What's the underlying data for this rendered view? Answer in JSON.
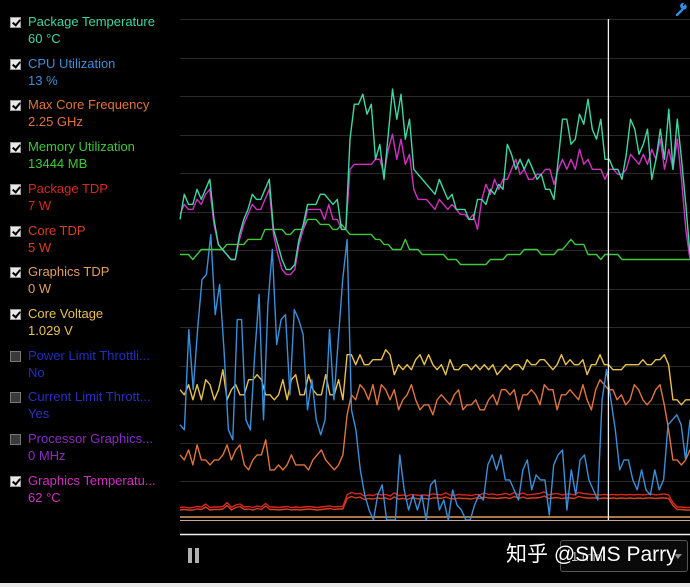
{
  "legend": {
    "items": [
      {
        "label": "Package Temperature",
        "value": "60 °C",
        "checked": true,
        "color": "#3fd6a6"
      },
      {
        "label": "CPU Utilization",
        "value": "13 %",
        "checked": true,
        "color": "#3a8fd8"
      },
      {
        "label": "Max Core Frequency",
        "value": "2.25 GHz",
        "checked": true,
        "color": "#e0743c"
      },
      {
        "label": "Memory Utilization",
        "value": "13444  MB",
        "checked": true,
        "color": "#3ec83a"
      },
      {
        "label": "Package TDP",
        "value": "7 W",
        "checked": true,
        "color": "#d8281e"
      },
      {
        "label": "Core TDP",
        "value": "5 W",
        "checked": true,
        "color": "#d8401e"
      },
      {
        "label": "Graphics TDP",
        "value": "0 W",
        "checked": true,
        "color": "#e0a060"
      },
      {
        "label": "Core Voltage",
        "value": "1.029 V",
        "checked": true,
        "color": "#e8c050"
      },
      {
        "label": "Power Limit Throttli...",
        "value": "No",
        "checked": false,
        "color": "#1f2fbf"
      },
      {
        "label": "Current Limit Thrott...",
        "value": "Yes",
        "checked": false,
        "color": "#2a2fbf"
      },
      {
        "label": "Processor Graphics...",
        "value": "0 MHz",
        "checked": false,
        "color": "#8a2ac8"
      },
      {
        "label": "Graphics Temperatu...",
        "value": "62 °C",
        "checked": true,
        "color": "#d030c0"
      }
    ]
  },
  "toolbar": {
    "settings_icon": "wrench-icon",
    "pause_icon": "pause-icon",
    "time_range": "1 min"
  },
  "watermark": "知乎 @SMS Parry",
  "chart_data": {
    "type": "line",
    "title": "",
    "xlabel": "",
    "ylabel": "",
    "ylim": [
      0,
      100
    ],
    "grid": true,
    "cursor_x_fraction": 0.84,
    "series": [
      {
        "name": "Package Temperature",
        "color": "#3fd6a6",
        "values": [
          60,
          65,
          63,
          63,
          66,
          64,
          66,
          68,
          60,
          55,
          54,
          53,
          52,
          52,
          57,
          60,
          62,
          65,
          64,
          64,
          66,
          68,
          58,
          55,
          52,
          50,
          50,
          51,
          56,
          59,
          63,
          63,
          63,
          65,
          65,
          64,
          63,
          64,
          58,
          58,
          76,
          83,
          83,
          85,
          81,
          83,
          72,
          75,
          68,
          77,
          86,
          80,
          85,
          76,
          80,
          70,
          69,
          68,
          67,
          66,
          65,
          68,
          66,
          64,
          65,
          62,
          62,
          62,
          60,
          60,
          64,
          64,
          63,
          66,
          65,
          67,
          66,
          75,
          73,
          70,
          72,
          70,
          72,
          70,
          68,
          69,
          66,
          66,
          64,
          72,
          80,
          80,
          75,
          76,
          81,
          79,
          84,
          78,
          76,
          80,
          72,
          72,
          70,
          70,
          68,
          73,
          80,
          78,
          73,
          75,
          78,
          68,
          72,
          78,
          72,
          82,
          70,
          80,
          72,
          63,
          53
        ]
      },
      {
        "name": "Graphics Temperature",
        "color": "#d030c0",
        "values": [
          61,
          63,
          62,
          62,
          64,
          63,
          65,
          66,
          59,
          55,
          54,
          53,
          52,
          52,
          56,
          59,
          61,
          63,
          62,
          62,
          64,
          66,
          57,
          53,
          50,
          49,
          49,
          50,
          55,
          58,
          62,
          62,
          62,
          62,
          60,
          63,
          60,
          60,
          58,
          58,
          70,
          71,
          71,
          71,
          71,
          71,
          72,
          72,
          69,
          74,
          77,
          72,
          76,
          71,
          73,
          66,
          64,
          64,
          64,
          63,
          62,
          64,
          63,
          62,
          63,
          62,
          61,
          61,
          60,
          61,
          58,
          64,
          67,
          65,
          68,
          66,
          68,
          68,
          70,
          72,
          69,
          70,
          68,
          68,
          69,
          69,
          70,
          70,
          67,
          70,
          72,
          70,
          72,
          70,
          74,
          71,
          72,
          70,
          70,
          70,
          68,
          70,
          70,
          69,
          69,
          70,
          73,
          72,
          71,
          73,
          71,
          74,
          72,
          76,
          70,
          74,
          70,
          76,
          68,
          58,
          52
        ]
      },
      {
        "name": "Memory Utilization",
        "color": "#3ec83a",
        "values": [
          53,
          53,
          53,
          52,
          53,
          54,
          54,
          54,
          54,
          54,
          54,
          55,
          55,
          55,
          55,
          55,
          56,
          56,
          56,
          56,
          58,
          58,
          58,
          58,
          58,
          57,
          57,
          58,
          58,
          58,
          60,
          60,
          60,
          59,
          59,
          59,
          58,
          58,
          59,
          58,
          57,
          57,
          57,
          57,
          57,
          57,
          56,
          56,
          55,
          55,
          54,
          54,
          54,
          56,
          54,
          54,
          54,
          53,
          53,
          53,
          53,
          53,
          53,
          52,
          52,
          52,
          51,
          51,
          51,
          51,
          51,
          51,
          51,
          52,
          52,
          52,
          52,
          53,
          53,
          53,
          53,
          54,
          54,
          54,
          54,
          53,
          53,
          53,
          53,
          54,
          54,
          55,
          56,
          55,
          55,
          55,
          53,
          53,
          53,
          52,
          53,
          53,
          53,
          53,
          52,
          52,
          52,
          52,
          52,
          52,
          52,
          52,
          52,
          52,
          52,
          52,
          52,
          52,
          52,
          52,
          52
        ]
      },
      {
        "name": "CPU Utilization",
        "color": "#3a8fd8",
        "values": [
          19,
          18,
          38,
          26,
          38,
          48,
          49,
          57,
          41,
          47,
          34,
          18,
          16,
          40,
          40,
          20,
          18,
          33,
          45,
          20,
          43,
          54,
          35,
          40,
          41,
          25,
          42,
          40,
          37,
          22,
          28,
          20,
          17,
          20,
          38,
          24,
          36,
          48,
          56,
          22,
          18,
          10,
          5,
          2,
          -2,
          5,
          7,
          0,
          -1,
          -1,
          13,
          6,
          2,
          5,
          2,
          5,
          -1,
          7,
          8,
          2,
          4,
          -2,
          6,
          3,
          2,
          -3,
          -3,
          3,
          5,
          4,
          11,
          13,
          10,
          13,
          8,
          8,
          6,
          4,
          10,
          12,
          6,
          9,
          8,
          8,
          1,
          11,
          13,
          14,
          2,
          10,
          5,
          12,
          13,
          8,
          6,
          4,
          24,
          30,
          24,
          18,
          10,
          12,
          12,
          8,
          6,
          10,
          6,
          5,
          10,
          6,
          8,
          19,
          20,
          21,
          19,
          12,
          20
        ]
      },
      {
        "name": "Core Voltage",
        "color": "#e8c050",
        "values": [
          26,
          25,
          27,
          24,
          27,
          24,
          28,
          27,
          24,
          26,
          30,
          24,
          26,
          27,
          25,
          25,
          28,
          28,
          29,
          28,
          25,
          25,
          24,
          25,
          28,
          24,
          28,
          29,
          25,
          25,
          29,
          26,
          25,
          25,
          29,
          25,
          25,
          28,
          24,
          33,
          33,
          31,
          33,
          31,
          31,
          32,
          32,
          32,
          34,
          33,
          29,
          31,
          30,
          31,
          30,
          32,
          33,
          31,
          33,
          31,
          30,
          31,
          29,
          32,
          30,
          30,
          31,
          31,
          30,
          31,
          30,
          31,
          30,
          31,
          29,
          30,
          31,
          30,
          31,
          31,
          30,
          32,
          31,
          31,
          32,
          32,
          31,
          30,
          31,
          33,
          31,
          32,
          31,
          31,
          32,
          29,
          31,
          31,
          33,
          31,
          31,
          30,
          30,
          30,
          31,
          31,
          31,
          31,
          32,
          31,
          31,
          32,
          32,
          33,
          31,
          24,
          24,
          23,
          24,
          24
        ]
      },
      {
        "name": "Max Core Frequency",
        "color": "#e0743c",
        "values": [
          13,
          12,
          14,
          11,
          15,
          12,
          12,
          11,
          12,
          12,
          13,
          15,
          12,
          14,
          15,
          11,
          10,
          12,
          13,
          13,
          16,
          10,
          10,
          11,
          10,
          11,
          13,
          11,
          11,
          11,
          10,
          12,
          13,
          14,
          12,
          11,
          10,
          11,
          13,
          21,
          25,
          24,
          27,
          26,
          24,
          27,
          23,
          27,
          26,
          24,
          26,
          22,
          24,
          25,
          27,
          24,
          22,
          23,
          23,
          21,
          24,
          25,
          24,
          23,
          25,
          26,
          22,
          23,
          23,
          24,
          22,
          22,
          24,
          25,
          23,
          26,
          26,
          25,
          26,
          22,
          25,
          25,
          26,
          25,
          23,
          27,
          26,
          26,
          22,
          25,
          25,
          26,
          25,
          24,
          27,
          24,
          22,
          26,
          28,
          27,
          26,
          26,
          24,
          25,
          23,
          24,
          27,
          26,
          24,
          23,
          24,
          26,
          27,
          23,
          18,
          12,
          12,
          11,
          12,
          14
        ]
      },
      {
        "name": "Package TDP",
        "color": "#d8281e",
        "values": [
          2.5,
          2.6,
          2.4,
          2.5,
          2.7,
          2.6,
          3.2,
          2.5,
          2.6,
          2.6,
          2.7,
          3.5,
          2.5,
          3.0,
          3.2,
          2.6,
          2.7,
          2.5,
          2.8,
          2.6,
          3.3,
          2.6,
          2.6,
          2.5,
          2.6,
          2.7,
          2.5,
          2.6,
          2.5,
          2.6,
          2.7,
          2.6,
          2.5,
          2.6,
          2.7,
          2.8,
          2.6,
          2.7,
          2.7,
          5.0,
          5.5,
          5.2,
          5.3,
          4.8,
          5.0,
          4.9,
          5.2,
          5.0,
          5.1,
          4.8,
          5.4,
          4.9,
          5.0,
          4.8,
          5.1,
          5.0,
          4.9,
          5.0,
          4.9,
          5.2,
          5.1,
          5.0,
          5.4,
          5.0,
          4.9,
          5.1,
          5.0,
          5.0,
          4.9,
          5.1,
          5.0,
          5.4,
          5.1,
          5.2,
          5.0,
          5.1,
          5.3,
          5.0,
          5.5,
          5.0,
          5.4,
          5.0,
          5.1,
          5.2,
          5.3,
          5.6,
          5.0,
          5.2,
          5.3,
          5.0,
          5.1,
          5.2,
          5.0,
          5.5,
          5.3,
          5.2,
          5.1,
          5.1,
          5.0,
          5.1,
          5.0,
          5.1,
          5.0,
          5.1,
          5.0,
          5.1,
          5.0,
          5.1,
          5.0,
          5.1,
          5.2,
          5.0,
          5.1,
          5.2,
          5.0,
          3.5,
          2.6,
          2.6,
          2.5,
          2.5
        ]
      },
      {
        "name": "Core TDP",
        "color": "#d8401e",
        "values": [
          2.0,
          2.1,
          2.0,
          2.0,
          2.2,
          2.1,
          2.6,
          2.0,
          2.1,
          2.1,
          2.2,
          2.9,
          2.0,
          2.5,
          2.7,
          2.1,
          2.2,
          2.0,
          2.3,
          2.1,
          2.8,
          2.1,
          2.1,
          2.0,
          2.1,
          2.2,
          2.0,
          2.1,
          2.0,
          2.1,
          2.2,
          2.1,
          2.0,
          2.1,
          2.2,
          2.3,
          2.1,
          2.2,
          2.2,
          4.3,
          4.7,
          4.4,
          4.6,
          4.1,
          4.3,
          4.2,
          4.4,
          4.3,
          4.4,
          4.1,
          4.6,
          4.2,
          4.3,
          4.1,
          4.4,
          4.3,
          4.2,
          4.3,
          4.2,
          4.4,
          4.4,
          4.3,
          4.6,
          4.3,
          4.2,
          4.4,
          4.3,
          4.3,
          4.2,
          4.4,
          4.3,
          4.6,
          4.4,
          4.4,
          4.3,
          4.4,
          4.5,
          4.3,
          4.7,
          4.3,
          4.6,
          4.3,
          4.4,
          4.4,
          4.5,
          4.8,
          4.3,
          4.4,
          4.5,
          4.3,
          4.4,
          4.4,
          4.3,
          4.7,
          4.5,
          4.4,
          4.4,
          4.4,
          4.3,
          4.4,
          4.3,
          4.4,
          4.3,
          4.4,
          4.3,
          4.4,
          4.3,
          4.4,
          4.3,
          4.4,
          4.4,
          4.3,
          4.4,
          4.4,
          4.3,
          2.9,
          2.1,
          2.1,
          2.0,
          2.0
        ]
      },
      {
        "name": "Graphics TDP",
        "color": "#e0a060",
        "values": [
          0.6,
          0.6,
          0.6,
          0.6,
          0.6,
          0.6,
          0.6,
          0.6,
          0.6,
          0.6,
          0.6,
          0.6,
          0.6,
          0.6,
          0.6,
          0.6,
          0.6,
          0.6,
          0.6,
          0.6,
          0.6,
          0.6,
          0.6,
          0.6,
          0.6,
          0.6,
          0.6,
          0.6,
          0.6,
          0.6,
          0.6,
          0.6,
          0.6,
          0.6,
          0.6,
          0.6,
          0.6,
          0.6,
          0.6,
          0.6,
          0.6,
          0.6,
          0.6,
          0.6,
          0.6,
          0.6,
          0.6,
          0.6,
          0.6,
          0.6,
          0.6,
          0.6,
          0.6,
          0.6,
          0.6,
          0.6,
          0.6,
          0.6,
          0.6,
          0.6,
          0.6,
          0.6,
          0.6,
          0.6,
          0.6,
          0.6,
          0.6,
          0.6,
          0.6,
          0.6,
          0.6,
          0.6,
          0.6,
          0.6,
          0.6,
          0.6,
          0.6,
          0.6,
          0.6,
          0.6,
          0.6,
          0.6,
          0.6,
          0.6,
          0.6,
          0.6,
          0.6,
          0.6,
          0.6,
          0.6,
          0.6,
          0.6,
          0.6,
          0.6,
          0.6,
          0.6,
          0.6,
          0.6,
          0.6,
          0.6,
          0.6,
          0.6,
          0.6,
          0.6,
          0.6,
          0.6,
          0.6,
          0.6,
          0.6,
          0.6,
          0.6,
          0.6,
          0.6,
          0.6,
          0.6,
          0.6,
          0.6,
          0.6,
          0.6,
          0.6
        ]
      }
    ]
  }
}
